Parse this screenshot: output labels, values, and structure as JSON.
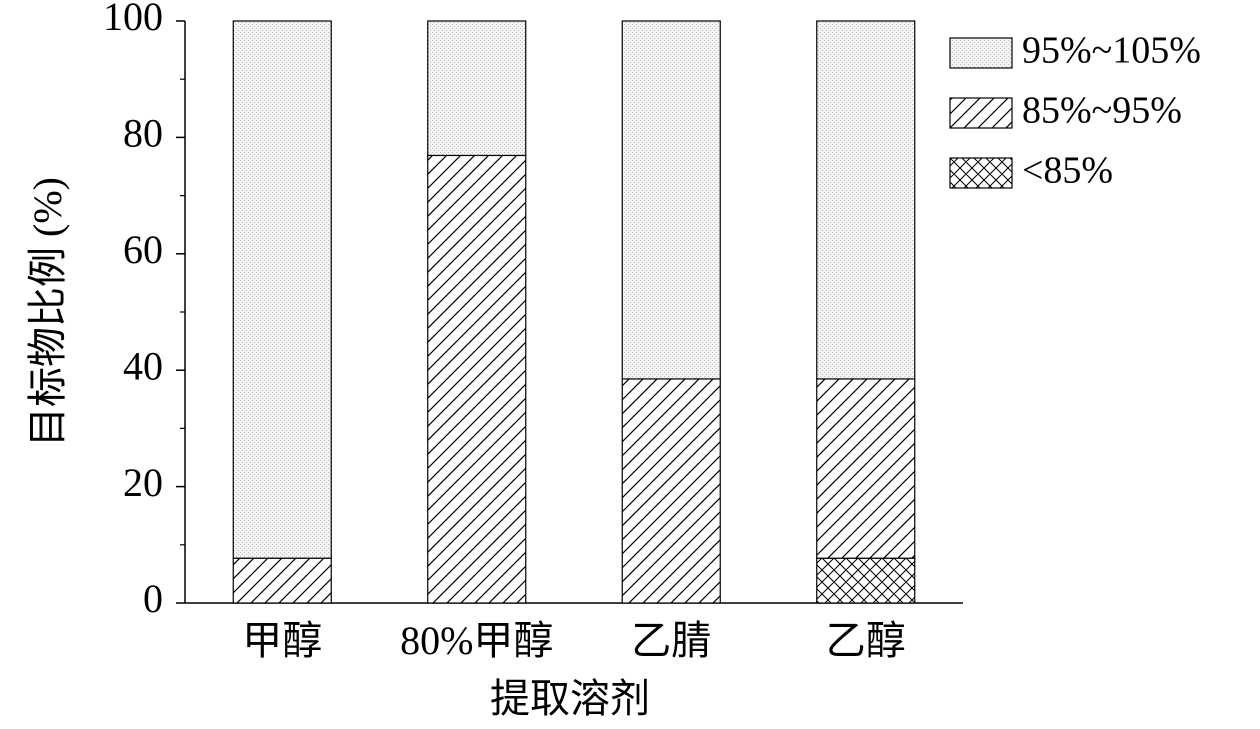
{
  "chart_data": {
    "type": "stacked-bar",
    "x_label": "提取溶剂",
    "y_label": "目标物比例 (%)",
    "categories": [
      "甲醇",
      "80%甲醇",
      "乙腈",
      "乙醇"
    ],
    "series": [
      {
        "name": "<85%",
        "color": "#000000",
        "pattern": "crosshatch",
        "values": [
          0,
          0,
          0,
          7.7
        ]
      },
      {
        "name": "85%~95%",
        "color": "#000000",
        "pattern": "hatch",
        "values": [
          7.7,
          76.9,
          38.5,
          30.8
        ]
      },
      {
        "name": "95%~105%",
        "color": "#bbbbbb",
        "pattern": "dots",
        "values": [
          92.3,
          23.1,
          61.5,
          61.5
        ]
      }
    ],
    "ylim": [
      0,
      100
    ],
    "yticks": [
      0,
      20,
      40,
      60,
      80,
      100
    ],
    "yminorticks": [
      10,
      30,
      50,
      70,
      90
    ],
    "grid": false,
    "legend": "upper right outside"
  }
}
